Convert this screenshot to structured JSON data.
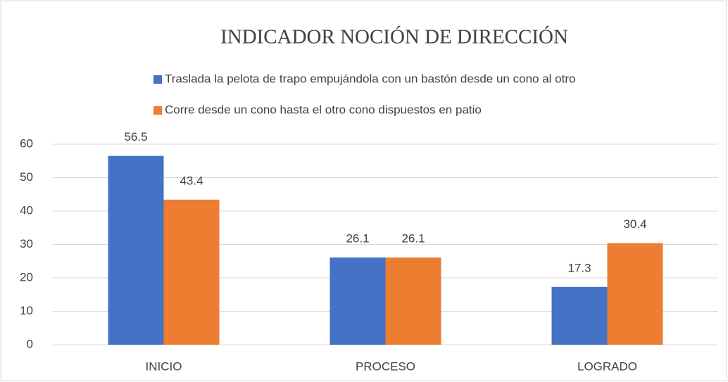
{
  "chart_data": {
    "type": "bar",
    "title": "INDICADOR NOCIÓN DE DIRECCIÓN",
    "categories": [
      "INICIO",
      "PROCESO",
      "LOGRADO"
    ],
    "series": [
      {
        "name": "Traslada la pelota de trapo empujándola con un bastón desde un cono al otro",
        "color": "#4472c4",
        "values": [
          56.5,
          26.1,
          17.3
        ]
      },
      {
        "name": "Corre desde un cono hasta el otro cono dispuestos en patio",
        "color": "#ed7d31",
        "values": [
          43.4,
          26.1,
          30.4
        ]
      }
    ],
    "ylim": [
      0,
      60
    ],
    "yticks": [
      0,
      10,
      20,
      30,
      40,
      50,
      60
    ],
    "grid": true,
    "legend": "top"
  }
}
